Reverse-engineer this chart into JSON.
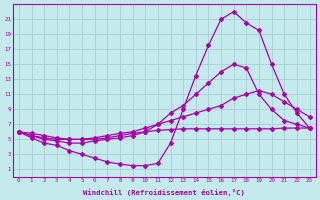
{
  "xlabel": "Windchill (Refroidissement éolien,°C)",
  "background_color": "#c5eaed",
  "grid_color": "#acd4d8",
  "line_color": "#aa00aa",
  "xlim": [
    -0.5,
    23.5
  ],
  "ylim": [
    0,
    23
  ],
  "yticks": [
    1,
    3,
    5,
    7,
    9,
    11,
    13,
    15,
    17,
    19,
    21
  ],
  "xticks": [
    0,
    1,
    2,
    3,
    4,
    5,
    6,
    7,
    8,
    9,
    10,
    11,
    12,
    13,
    14,
    15,
    16,
    17,
    18,
    19,
    20,
    21,
    22,
    23
  ],
  "lines": [
    {
      "x": [
        0,
        1,
        2,
        3,
        4,
        5,
        6,
        7,
        8,
        9,
        10,
        11,
        12,
        13,
        14,
        15,
        16,
        17,
        18,
        19,
        20,
        21,
        22,
        23
      ],
      "y": [
        6,
        5.2,
        4.5,
        4.2,
        3.5,
        3.0,
        2.5,
        2.0,
        1.7,
        1.5,
        1.5,
        1.8,
        4.5,
        9.0,
        13.5,
        17.5,
        21.0,
        22.0,
        20.5,
        19.5,
        15.0,
        11.0,
        8.5,
        6.5
      ]
    },
    {
      "x": [
        0,
        1,
        2,
        3,
        4,
        5,
        6,
        7,
        8,
        9,
        10,
        11,
        12,
        13,
        14,
        15,
        16,
        17,
        18,
        19,
        20,
        21,
        22,
        23
      ],
      "y": [
        6,
        5.5,
        5.0,
        4.8,
        4.5,
        4.5,
        4.8,
        5.0,
        5.2,
        5.5,
        6.0,
        7.0,
        8.5,
        9.5,
        11.0,
        12.5,
        14.0,
        15.0,
        14.5,
        11.0,
        9.0,
        7.5,
        7.0,
        6.5
      ]
    },
    {
      "x": [
        0,
        1,
        2,
        3,
        4,
        5,
        6,
        7,
        8,
        9,
        10,
        11,
        12,
        13,
        14,
        15,
        16,
        17,
        18,
        19,
        20,
        21,
        22,
        23
      ],
      "y": [
        6,
        5.5,
        5.2,
        5.0,
        5.0,
        5.0,
        5.2,
        5.5,
        5.8,
        6.0,
        6.5,
        7.0,
        7.5,
        8.0,
        8.5,
        9.0,
        9.5,
        10.5,
        11.0,
        11.5,
        11.0,
        10.0,
        9.0,
        8.0
      ]
    },
    {
      "x": [
        0,
        1,
        2,
        3,
        4,
        5,
        6,
        7,
        8,
        9,
        10,
        11,
        12,
        13,
        14,
        15,
        16,
        17,
        18,
        19,
        20,
        21,
        22,
        23
      ],
      "y": [
        6,
        5.8,
        5.5,
        5.2,
        5.0,
        5.0,
        5.0,
        5.2,
        5.5,
        5.8,
        6.0,
        6.2,
        6.3,
        6.4,
        6.4,
        6.4,
        6.4,
        6.4,
        6.4,
        6.4,
        6.4,
        6.5,
        6.5,
        6.5
      ]
    }
  ],
  "marker": "D",
  "markersize": 2.0,
  "linewidth": 0.9,
  "tick_fontsize": 4.2,
  "xlabel_fontsize": 5.2
}
